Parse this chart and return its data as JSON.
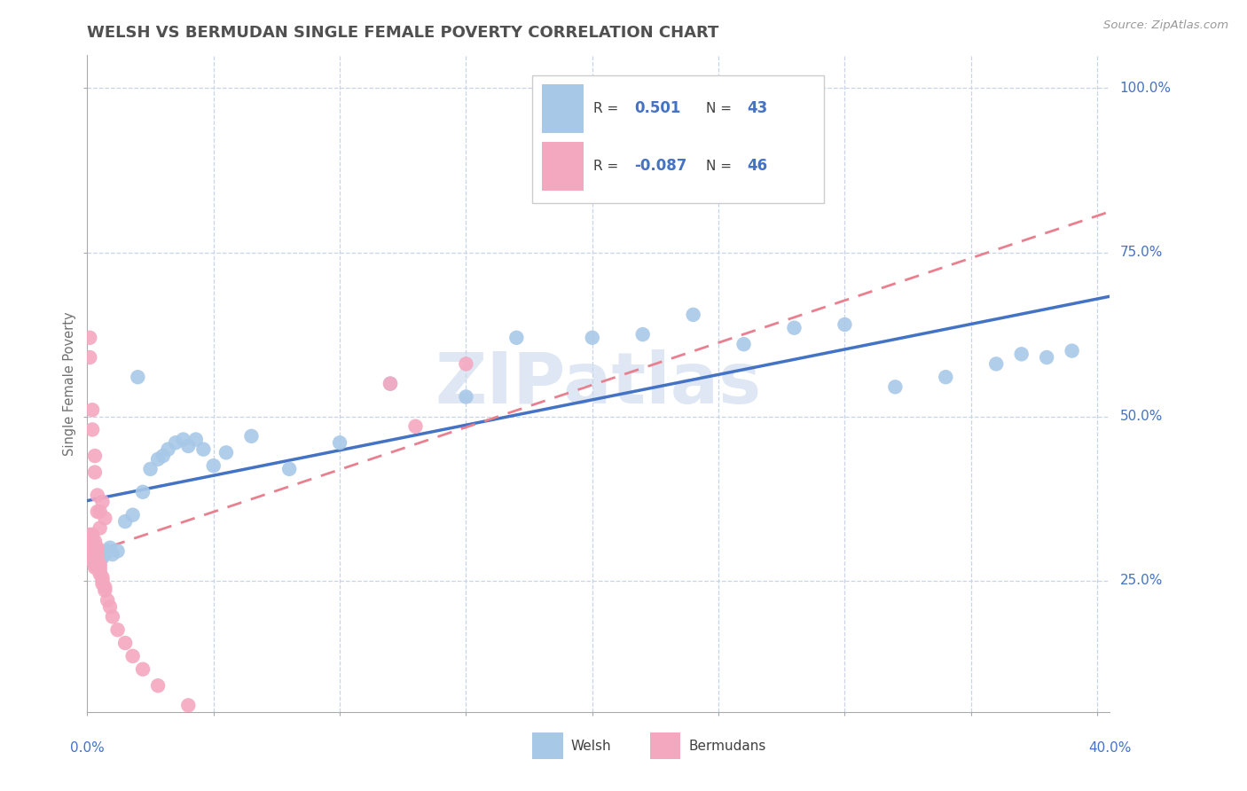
{
  "title": "WELSH VS BERMUDAN SINGLE FEMALE POVERTY CORRELATION CHART",
  "source": "Source: ZipAtlas.com",
  "ylabel": "Single Female Poverty",
  "yticks": [
    0.25,
    0.5,
    0.75,
    1.0
  ],
  "ytick_labels": [
    "25.0%",
    "50.0%",
    "75.0%",
    "100.0%"
  ],
  "xlim": [
    0.0,
    0.405
  ],
  "ylim": [
    0.05,
    1.05
  ],
  "welsh_R": 0.501,
  "welsh_N": 43,
  "bermudan_R": -0.087,
  "bermudan_N": 46,
  "welsh_color": "#A8C8E8",
  "bermudan_color": "#F4A8C0",
  "welsh_line_color": "#4472C4",
  "bermudan_line_color": "#E88090",
  "legend_text_color": "#4472C4",
  "title_color": "#505050",
  "axis_label_color": "#4472C4",
  "watermark_color": "#C8D8EC",
  "grid_color": "#C8D4E8",
  "welsh_x": [
    0.002,
    0.003,
    0.004,
    0.005,
    0.006,
    0.007,
    0.008,
    0.009,
    0.01,
    0.012,
    0.015,
    0.018,
    0.02,
    0.022,
    0.025,
    0.028,
    0.03,
    0.032,
    0.035,
    0.038,
    0.04,
    0.043,
    0.046,
    0.05,
    0.055,
    0.065,
    0.08,
    0.1,
    0.12,
    0.15,
    0.17,
    0.2,
    0.22,
    0.24,
    0.26,
    0.28,
    0.3,
    0.32,
    0.34,
    0.36,
    0.37,
    0.38,
    0.39
  ],
  "welsh_y": [
    0.28,
    0.285,
    0.29,
    0.295,
    0.285,
    0.29,
    0.295,
    0.3,
    0.29,
    0.295,
    0.34,
    0.35,
    0.56,
    0.385,
    0.42,
    0.435,
    0.44,
    0.45,
    0.46,
    0.465,
    0.455,
    0.465,
    0.45,
    0.425,
    0.445,
    0.47,
    0.42,
    0.46,
    0.55,
    0.53,
    0.62,
    0.62,
    0.625,
    0.655,
    0.61,
    0.635,
    0.64,
    0.545,
    0.56,
    0.58,
    0.595,
    0.59,
    0.6
  ],
  "bermudan_x": [
    0.001,
    0.001,
    0.001,
    0.001,
    0.001,
    0.002,
    0.002,
    0.002,
    0.002,
    0.002,
    0.003,
    0.003,
    0.003,
    0.003,
    0.003,
    0.003,
    0.003,
    0.003,
    0.003,
    0.004,
    0.004,
    0.004,
    0.004,
    0.004,
    0.004,
    0.005,
    0.005,
    0.005,
    0.005,
    0.006,
    0.006,
    0.006,
    0.007,
    0.007,
    0.008,
    0.009,
    0.01,
    0.012,
    0.015,
    0.018,
    0.022,
    0.028,
    0.04,
    0.12,
    0.13,
    0.15
  ],
  "bermudan_y": [
    0.285,
    0.295,
    0.3,
    0.31,
    0.32,
    0.28,
    0.29,
    0.295,
    0.31,
    0.32,
    0.27,
    0.275,
    0.28,
    0.285,
    0.29,
    0.295,
    0.3,
    0.305,
    0.31,
    0.27,
    0.275,
    0.28,
    0.285,
    0.29,
    0.3,
    0.26,
    0.265,
    0.27,
    0.275,
    0.245,
    0.25,
    0.255,
    0.235,
    0.24,
    0.22,
    0.21,
    0.195,
    0.175,
    0.155,
    0.135,
    0.115,
    0.09,
    0.06,
    0.55,
    0.485,
    0.58
  ],
  "bermudan_extra_x": [
    0.001,
    0.001,
    0.002,
    0.002,
    0.003,
    0.003,
    0.004,
    0.004,
    0.005,
    0.005,
    0.006,
    0.007
  ],
  "bermudan_extra_y": [
    0.59,
    0.62,
    0.48,
    0.51,
    0.415,
    0.44,
    0.355,
    0.38,
    0.33,
    0.355,
    0.37,
    0.345
  ]
}
